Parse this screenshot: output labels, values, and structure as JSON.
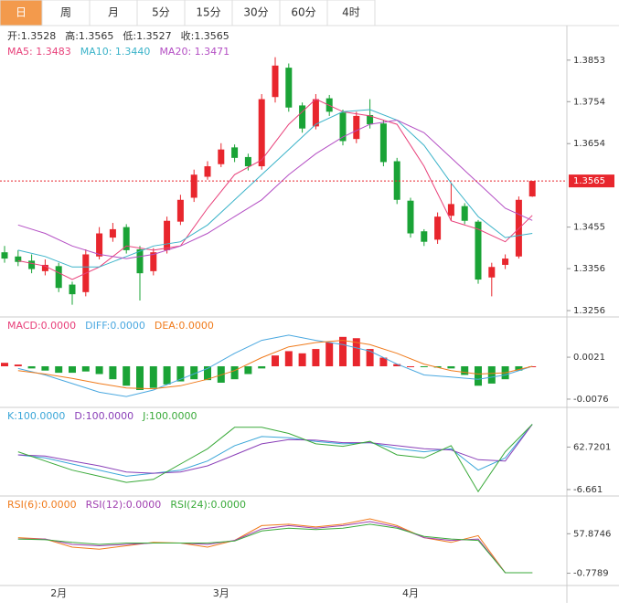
{
  "tabs": [
    "日",
    "周",
    "月",
    "5分",
    "15分",
    "30分",
    "60分",
    "4时"
  ],
  "info": [
    "开:1.3528",
    "高:1.3565",
    "低:1.3527",
    "收:1.3565"
  ],
  "xlabels": [
    "2月",
    "3月",
    "4月"
  ],
  "chart_data": [
    {
      "type": "candlestick",
      "up_color": "#e8262d",
      "down_color": "#1aa336",
      "ylim": [
        1.3243,
        1.3931
      ],
      "yticks": [
        1.3853,
        1.3754,
        1.3654,
        1.3455,
        1.3356,
        1.3256
      ],
      "open": [
        1.3395,
        1.3385,
        1.3375,
        1.335,
        1.3362,
        1.3318,
        1.33,
        1.3385,
        1.343,
        1.3455,
        1.3402,
        1.335,
        1.34,
        1.3468,
        1.3525,
        1.3575,
        1.3605,
        1.3645,
        1.3622,
        1.36,
        1.3765,
        1.3835,
        1.3745,
        1.3695,
        1.3762,
        1.3728,
        1.3665,
        1.3722,
        1.3702,
        1.3612,
        1.3518,
        1.3445,
        1.3425,
        1.3482,
        1.3505,
        1.3468,
        1.3335,
        1.3365,
        1.3385,
        1.3528
      ],
      "high": [
        1.341,
        1.34,
        1.339,
        1.3378,
        1.337,
        1.3325,
        1.3402,
        1.3455,
        1.3465,
        1.3462,
        1.341,
        1.3405,
        1.348,
        1.3532,
        1.3592,
        1.3612,
        1.3655,
        1.3652,
        1.363,
        1.3772,
        1.386,
        1.3845,
        1.3752,
        1.3772,
        1.377,
        1.3735,
        1.373,
        1.376,
        1.371,
        1.362,
        1.3525,
        1.345,
        1.349,
        1.356,
        1.3512,
        1.3472,
        1.337,
        1.339,
        1.3528,
        1.3565
      ],
      "low": [
        1.337,
        1.3362,
        1.3345,
        1.334,
        1.33,
        1.327,
        1.329,
        1.3378,
        1.342,
        1.3392,
        1.328,
        1.334,
        1.3392,
        1.346,
        1.3515,
        1.3568,
        1.3598,
        1.361,
        1.359,
        1.3592,
        1.3752,
        1.373,
        1.368,
        1.3688,
        1.372,
        1.365,
        1.3655,
        1.369,
        1.36,
        1.351,
        1.343,
        1.341,
        1.3415,
        1.347,
        1.3462,
        1.332,
        1.329,
        1.3355,
        1.338,
        1.3527
      ],
      "close": [
        1.338,
        1.3372,
        1.3355,
        1.3365,
        1.331,
        1.3295,
        1.339,
        1.344,
        1.345,
        1.34,
        1.3345,
        1.3395,
        1.347,
        1.352,
        1.358,
        1.36,
        1.364,
        1.362,
        1.36,
        1.376,
        1.384,
        1.374,
        1.369,
        1.376,
        1.373,
        1.366,
        1.372,
        1.37,
        1.361,
        1.352,
        1.344,
        1.342,
        1.348,
        1.351,
        1.347,
        1.333,
        1.336,
        1.338,
        1.352,
        1.3565
      ],
      "series": [
        {
          "name": "MA5: 1.3483",
          "color": "#e8407a",
          "values": [
            1.3375,
            1.3362,
            1.333,
            1.336,
            1.341,
            1.34,
            1.341,
            1.35,
            1.358,
            1.3615,
            1.37,
            1.376,
            1.373,
            1.372,
            1.37,
            1.36,
            1.347,
            1.345,
            1.342,
            1.3483
          ]
        },
        {
          "name": "MA10: 1.3440",
          "color": "#3bb3c9",
          "values": [
            1.34,
            1.3385,
            1.336,
            1.336,
            1.3385,
            1.341,
            1.342,
            1.346,
            1.352,
            1.358,
            1.364,
            1.37,
            1.373,
            1.3735,
            1.371,
            1.365,
            1.356,
            1.348,
            1.343,
            1.344
          ]
        },
        {
          "name": "MA20: 1.3471",
          "color": "#b44fc4",
          "values": [
            1.346,
            1.344,
            1.341,
            1.339,
            1.338,
            1.339,
            1.341,
            1.344,
            1.348,
            1.352,
            1.358,
            1.363,
            1.367,
            1.37,
            1.371,
            1.368,
            1.362,
            1.356,
            1.35,
            1.3471
          ]
        }
      ]
    },
    {
      "type": "macd",
      "title": "MACD:0.0000",
      "title_color": "#e8407a",
      "up_color": "#e8262d",
      "down_color": "#1aa336",
      "ylim": [
        -0.0093,
        0.0112
      ],
      "yticks": [
        0.0021,
        -0.0076
      ],
      "values": [
        0.0008,
        0.0004,
        -0.0005,
        -0.001,
        -0.0015,
        -0.0015,
        -0.0012,
        -0.0018,
        -0.003,
        -0.0045,
        -0.0055,
        -0.005,
        -0.0042,
        -0.0035,
        -0.003,
        -0.0032,
        -0.0038,
        -0.003,
        -0.0018,
        -0.0005,
        0.0025,
        0.0035,
        0.003,
        0.004,
        0.0055,
        0.0068,
        0.0065,
        0.004,
        0.002,
        0.0005,
        0.0,
        -0.0002,
        -0.0003,
        -0.0005,
        -0.002,
        -0.0045,
        -0.004,
        -0.003,
        -0.001,
        0.0
      ],
      "series": [
        {
          "name": "DIFF:0.0000",
          "color": "#4aa8e0",
          "values": [
            -0.0005,
            -0.002,
            -0.004,
            -0.006,
            -0.007,
            -0.0055,
            -0.003,
            -0.0005,
            0.003,
            0.006,
            0.0072,
            0.006,
            0.005,
            0.0035,
            0.0005,
            -0.002,
            -0.0025,
            -0.003,
            -0.002,
            0.0
          ]
        },
        {
          "name": "DEA:0.0000",
          "color": "#f07b1c",
          "values": [
            -0.001,
            -0.0018,
            -0.0028,
            -0.004,
            -0.005,
            -0.0052,
            -0.0045,
            -0.003,
            -0.001,
            0.002,
            0.0045,
            0.0055,
            0.006,
            0.005,
            0.003,
            0.0005,
            -0.001,
            -0.0018,
            -0.0015,
            0.0
          ]
        }
      ]
    },
    {
      "type": "line",
      "ylim": [
        -15.7,
        126.1
      ],
      "yticks": [
        62.7201,
        -6.661
      ],
      "series": [
        {
          "name": "K:100.0000",
          "color": "#3aa6d8",
          "values": [
            50,
            45,
            35,
            25,
            15,
            20,
            25,
            40,
            65,
            80,
            78,
            72,
            68,
            70,
            60,
            55,
            60,
            25,
            45,
            100
          ]
        },
        {
          "name": "D:100.0000",
          "color": "#8a3fb8",
          "values": [
            50,
            48,
            40,
            32,
            22,
            20,
            22,
            32,
            50,
            68,
            75,
            74,
            70,
            70,
            65,
            60,
            58,
            42,
            40,
            100
          ]
        },
        {
          "name": "J:100.0000",
          "color": "#3aaa3a",
          "values": [
            55,
            40,
            25,
            15,
            5,
            10,
            35,
            60,
            95,
            95,
            85,
            68,
            64,
            72,
            50,
            45,
            65,
            -10,
            55,
            100
          ]
        }
      ]
    },
    {
      "type": "line",
      "ylim": [
        -17.7,
        112.6
      ],
      "yticks": [
        57.8746,
        -0.7789
      ],
      "series": [
        {
          "name": "RSI(6):0.0000",
          "color": "#f07b1c",
          "values": [
            52,
            50,
            38,
            35,
            40,
            45,
            44,
            38,
            48,
            70,
            72,
            68,
            72,
            80,
            70,
            52,
            45,
            55,
            0,
            0
          ]
        },
        {
          "name": "RSI(12):0.0000",
          "color": "#a03fb0",
          "values": [
            50,
            50,
            42,
            40,
            42,
            44,
            44,
            42,
            48,
            65,
            70,
            66,
            70,
            76,
            68,
            52,
            48,
            50,
            0,
            0
          ]
        },
        {
          "name": "RSI(24):0.0000",
          "color": "#3aaa3a",
          "values": [
            50,
            49,
            45,
            42,
            44,
            44,
            44,
            44,
            47,
            62,
            66,
            64,
            66,
            72,
            66,
            54,
            50,
            48,
            0,
            0
          ]
        }
      ]
    }
  ]
}
